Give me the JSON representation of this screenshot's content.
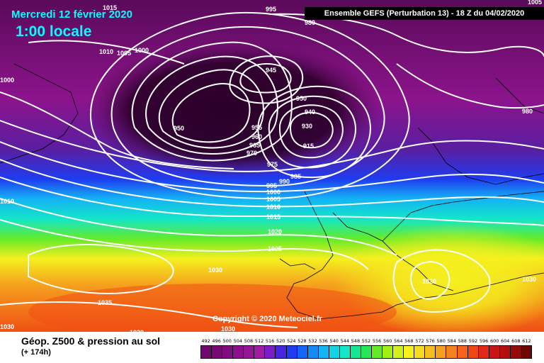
{
  "header": {
    "date": "Mercredi 12 février 2020",
    "time": "1:00 locale",
    "run": "Ensemble GEFS  (Perturbation 13)  -  18 Z du 04/02/2020"
  },
  "copyright": "Copyright © 2020 Meteociel.fr",
  "footer": {
    "title": "Géop. Z500 & pression au sol",
    "subtitle": "(+ 174h)"
  },
  "legend": {
    "values": [
      "492",
      "496",
      "500",
      "504",
      "508",
      "512",
      "516",
      "520",
      "524",
      "528",
      "532",
      "536",
      "540",
      "544",
      "548",
      "552",
      "556",
      "560",
      "564",
      "568",
      "572",
      "576",
      "580",
      "584",
      "588",
      "592",
      "596",
      "600",
      "604",
      "608",
      "612"
    ],
    "colors": [
      "#6e0a6e",
      "#780a78",
      "#820c82",
      "#8c0f8c",
      "#961496",
      "#a01ca0",
      "#7a1ec8",
      "#4626e0",
      "#1e3cf0",
      "#1464f5",
      "#148cf5",
      "#14b4f5",
      "#14d2e6",
      "#14e6c8",
      "#14e696",
      "#28e65a",
      "#64eb28",
      "#a0f014",
      "#d2f01e",
      "#f5f01e",
      "#f5dc1e",
      "#f5be1e",
      "#f5a01e",
      "#f5821e",
      "#f5641e",
      "#f04614",
      "#e12814",
      "#cd1414",
      "#b40f0f",
      "#960a0a",
      "#700505"
    ]
  },
  "map": {
    "colors": {
      "violet_dark": "#2a0028",
      "violet": "#5a0a5a",
      "magenta": "#8c148c",
      "purple": "#5a1ea0",
      "blue": "#1e3cf0",
      "cyan": "#14b4f5",
      "aqua": "#14e6c8",
      "green": "#64eb28",
      "yellow": "#f5f01e",
      "orange": "#f5a01e",
      "red": "#f05014",
      "isobar": "#ffffff",
      "coast": "#000000"
    },
    "isobar_labels": [
      "1015",
      "995",
      "980",
      "1010",
      "1005",
      "1000",
      "1000",
      "945",
      "950",
      "950",
      "940",
      "930",
      "955",
      "960",
      "965",
      "970",
      "975",
      "915",
      "985",
      "990",
      "995",
      "1000",
      "1005",
      "1010",
      "1015",
      "1010",
      "1020",
      "1025",
      "1030",
      "1035",
      "1030",
      "1030",
      "1030",
      "1020",
      "1030",
      "1005",
      "980"
    ]
  }
}
